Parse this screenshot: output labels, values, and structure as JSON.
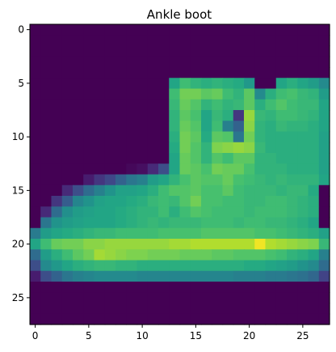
{
  "title": "Ankle boot",
  "chart_data": {
    "type": "heatmap",
    "title": "Ankle boot",
    "colormap": "viridis",
    "shape": [
      28,
      28
    ],
    "vmin": 0,
    "vmax": 255,
    "x_ticks": [
      0,
      5,
      10,
      15,
      20,
      25
    ],
    "y_ticks": [
      0,
      5,
      10,
      15,
      20,
      25
    ],
    "x_tick_labels": [
      "0",
      "5",
      "10",
      "15",
      "20",
      "25"
    ],
    "y_tick_labels": [
      "0",
      "5",
      "10",
      "15",
      "20",
      "25"
    ],
    "grid": false,
    "nonzero_rows": [
      {
        "row": 5,
        "start": 13,
        "values": [
          150,
          175,
          165,
          160,
          165,
          160,
          155,
          135,
          0,
          0,
          150,
          160,
          150,
          140,
          120
        ]
      },
      {
        "row": 6,
        "start": 13,
        "values": [
          175,
          200,
          200,
          190,
          195,
          175,
          165,
          190,
          120,
          160,
          175,
          180,
          170,
          165,
          140
        ]
      },
      {
        "row": 7,
        "start": 13,
        "values": [
          170,
          195,
          185,
          165,
          175,
          165,
          170,
          190,
          160,
          175,
          185,
          175,
          170,
          170,
          150
        ]
      },
      {
        "row": 8,
        "start": 13,
        "values": [
          165,
          190,
          180,
          150,
          170,
          160,
          40,
          215,
          170,
          165,
          175,
          175,
          170,
          165,
          150
        ]
      },
      {
        "row": 9,
        "start": 13,
        "values": [
          165,
          195,
          185,
          150,
          175,
          110,
          80,
          210,
          165,
          160,
          170,
          165,
          165,
          160,
          150
        ]
      },
      {
        "row": 10,
        "start": 13,
        "values": [
          160,
          200,
          190,
          155,
          190,
          185,
          100,
          200,
          165,
          160,
          160,
          160,
          160,
          160,
          145
        ]
      },
      {
        "row": 11,
        "start": 13,
        "values": [
          155,
          200,
          185,
          165,
          205,
          210,
          215,
          210,
          170,
          160,
          160,
          160,
          160,
          160,
          145
        ]
      },
      {
        "row": 12,
        "start": 13,
        "values": [
          150,
          195,
          185,
          165,
          185,
          175,
          190,
          190,
          165,
          165,
          160,
          160,
          160,
          160,
          145
        ]
      },
      {
        "row": 13,
        "start": 9,
        "values": [
          5,
          10,
          30,
          60,
          150,
          195,
          190,
          180,
          200,
          195,
          195,
          180,
          165,
          165,
          165,
          160,
          160,
          160,
          145
        ]
      },
      {
        "row": 14,
        "start": 5,
        "values": [
          20,
          40,
          55,
          80,
          100,
          110,
          140,
          150,
          165,
          180,
          190,
          185,
          185,
          195,
          180,
          175,
          170,
          165,
          170,
          165,
          165,
          165,
          150
        ]
      },
      {
        "row": 15,
        "start": 3,
        "values": [
          30,
          60,
          90,
          110,
          130,
          145,
          145,
          150,
          160,
          175,
          185,
          185,
          190,
          180,
          180,
          190,
          175,
          170,
          170,
          170,
          165,
          170,
          170,
          155
        ]
      },
      {
        "row": 16,
        "start": 2,
        "values": [
          40,
          75,
          115,
          130,
          145,
          150,
          150,
          155,
          160,
          170,
          175,
          170,
          185,
          200,
          180,
          180,
          175,
          175,
          170,
          170,
          175,
          175,
          170,
          165,
          160
        ]
      },
      {
        "row": 17,
        "start": 1,
        "values": [
          30,
          90,
          125,
          140,
          145,
          150,
          150,
          155,
          160,
          165,
          165,
          175,
          160,
          175,
          185,
          180,
          175,
          175,
          175,
          170,
          175,
          175,
          175,
          170,
          165,
          160
        ]
      },
      {
        "row": 18,
        "start": 1,
        "values": [
          100,
          130,
          140,
          145,
          150,
          150,
          150,
          155,
          160,
          165,
          170,
          165,
          170,
          170,
          170,
          175,
          175,
          175,
          170,
          175,
          175,
          170,
          170,
          165,
          160,
          150
        ]
      },
      {
        "row": 19,
        "start": 0,
        "values": [
          105,
          140,
          150,
          155,
          160,
          165,
          170,
          170,
          175,
          175,
          175,
          175,
          180,
          180,
          180,
          180,
          185,
          185,
          185,
          185,
          185,
          180,
          180,
          175,
          170,
          165,
          160,
          145
        ]
      },
      {
        "row": 20,
        "start": 0,
        "values": [
          150,
          175,
          195,
          200,
          200,
          210,
          210,
          215,
          215,
          215,
          215,
          215,
          215,
          220,
          220,
          225,
          225,
          225,
          225,
          225,
          225,
          250,
          225,
          220,
          215,
          210,
          205,
          170
        ]
      },
      {
        "row": 21,
        "start": 0,
        "values": [
          90,
          140,
          160,
          175,
          190,
          200,
          220,
          215,
          210,
          205,
          205,
          200,
          200,
          200,
          195,
          195,
          195,
          190,
          190,
          185,
          185,
          185,
          180,
          175,
          165,
          160,
          150,
          110
        ]
      },
      {
        "row": 22,
        "start": 0,
        "values": [
          60,
          120,
          135,
          150,
          160,
          165,
          170,
          170,
          165,
          165,
          160,
          160,
          160,
          160,
          160,
          160,
          160,
          160,
          160,
          160,
          155,
          155,
          150,
          145,
          140,
          130,
          120,
          90
        ]
      },
      {
        "row": 23,
        "start": 0,
        "values": [
          20,
          60,
          80,
          100,
          110,
          115,
          120,
          120,
          120,
          120,
          115,
          115,
          115,
          115,
          115,
          115,
          115,
          115,
          115,
          110,
          110,
          110,
          105,
          105,
          100,
          95,
          85,
          50
        ]
      }
    ]
  }
}
